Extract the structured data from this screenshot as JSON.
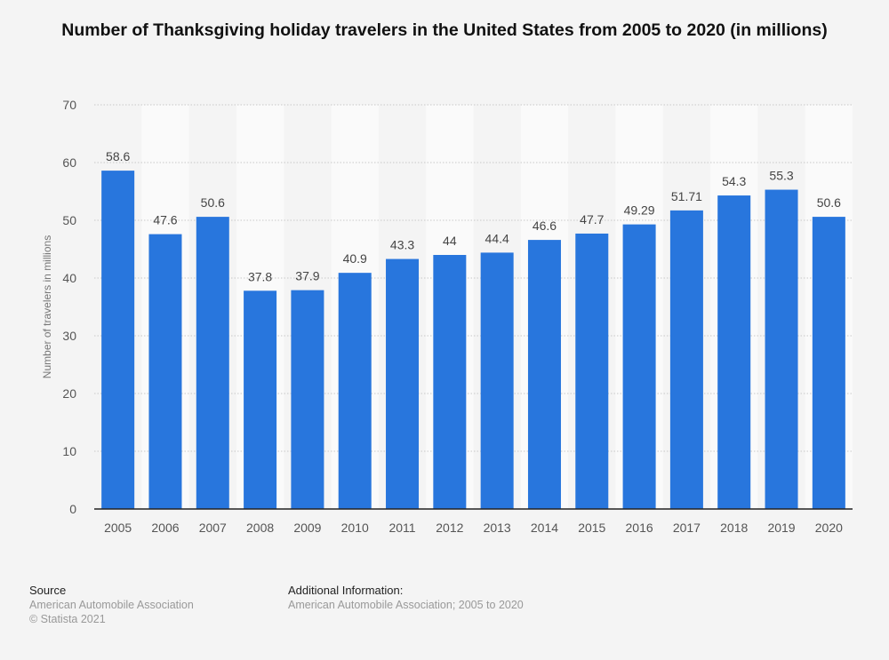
{
  "chart_data": {
    "type": "bar",
    "title": "Number of Thanksgiving holiday travelers in the United States from 2005 to 2020 (in millions)",
    "xlabel": "",
    "ylabel": "Number of travelers in millions",
    "categories": [
      "2005",
      "2006",
      "2007",
      "2008",
      "2009",
      "2010",
      "2011",
      "2012",
      "2013",
      "2014",
      "2015",
      "2016",
      "2017",
      "2018",
      "2019",
      "2020"
    ],
    "values": [
      58.6,
      47.6,
      50.6,
      37.8,
      37.9,
      40.9,
      43.3,
      44,
      44.4,
      46.6,
      47.7,
      49.29,
      51.71,
      54.3,
      55.3,
      50.6
    ],
    "value_labels": [
      "58.6",
      "47.6",
      "50.6",
      "37.8",
      "37.9",
      "40.9",
      "43.3",
      "44",
      "44.4",
      "46.6",
      "47.7",
      "49.29",
      "51.71",
      "54.3",
      "55.3",
      "50.6"
    ],
    "ylim": [
      0,
      70
    ],
    "yticks": [
      0,
      10,
      20,
      30,
      40,
      50,
      60,
      70
    ],
    "grid": true,
    "legend": "none",
    "bar_color": "#2876dd"
  },
  "footer": {
    "source_heading": "Source",
    "source_text": "American Automobile Association",
    "copyright": "© Statista 2021",
    "info_heading": "Additional Information:",
    "info_text": "American Automobile Association; 2005 to 2020"
  }
}
